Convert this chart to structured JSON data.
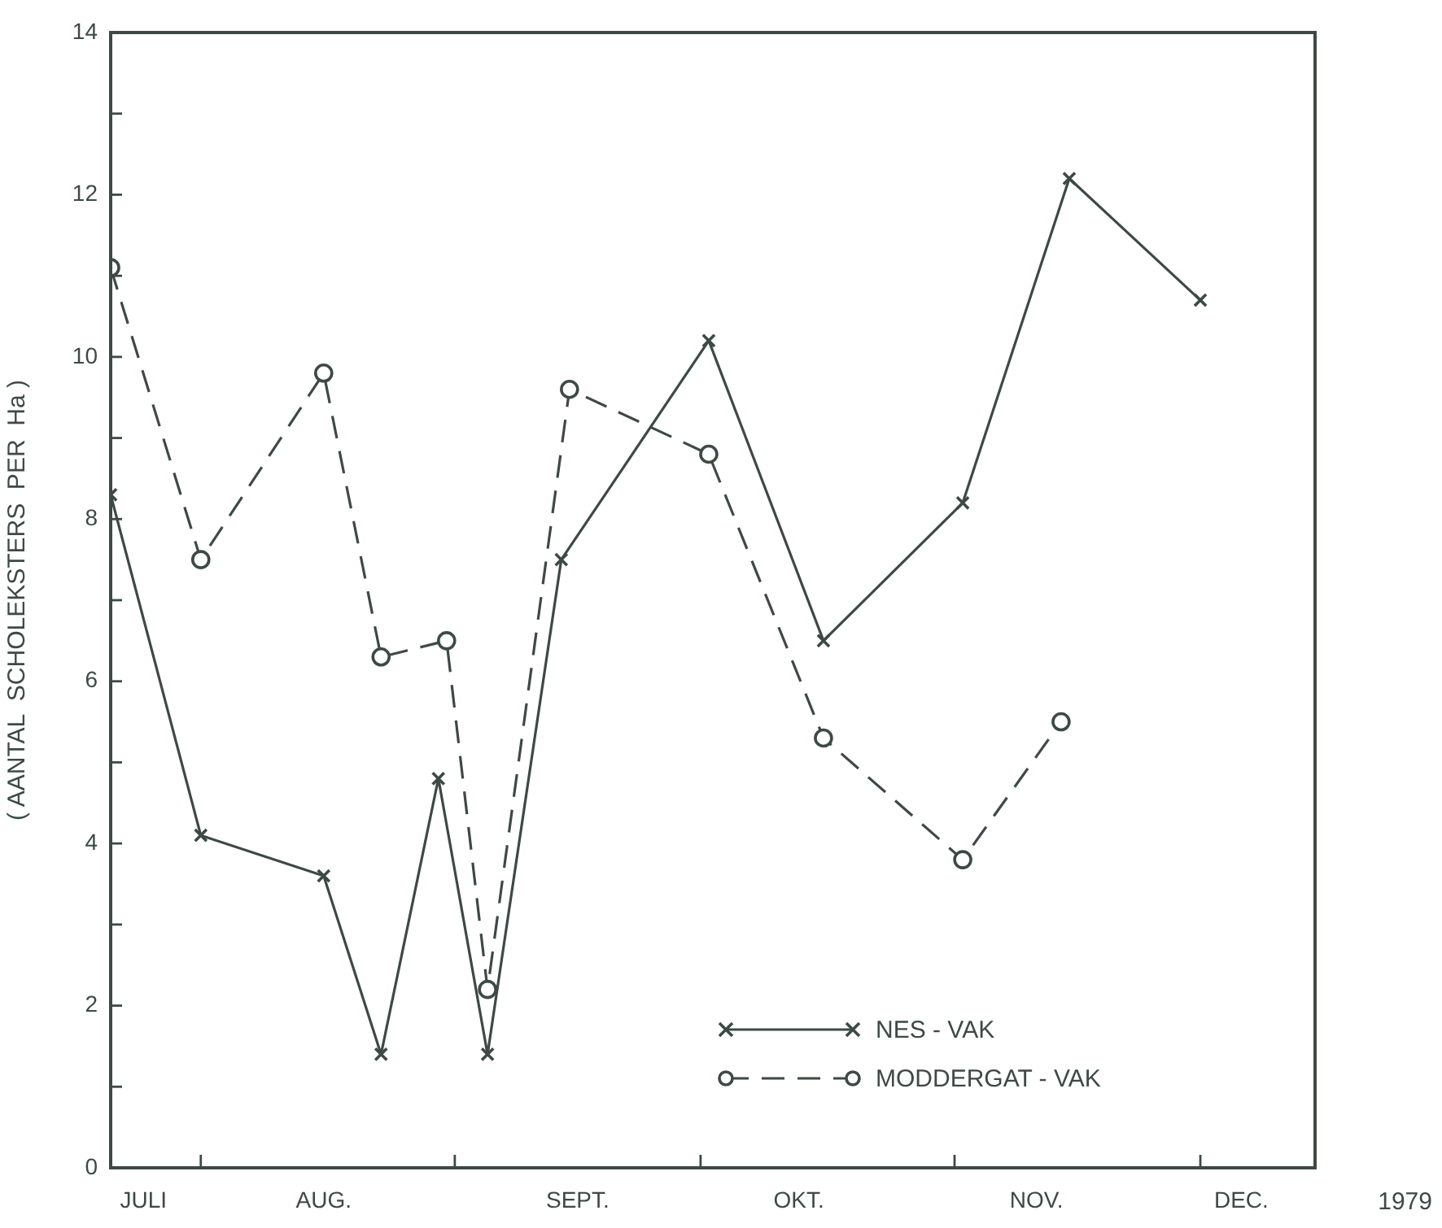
{
  "chart_data": {
    "type": "line",
    "ylabel": "( AANTAL  SCHOLEKSTERS  PER  Ha )",
    "xlim": [
      "1979-07-21",
      "1979-12-15"
    ],
    "xticks": [
      {
        "value": "1979-07-25",
        "label": "JULI"
      },
      {
        "value": "1979-08-01",
        "label": null
      },
      {
        "value": "1979-08-16",
        "label": "AUG."
      },
      {
        "value": "1979-09-01",
        "label": null
      },
      {
        "value": "1979-09-16",
        "label": "SEPT."
      },
      {
        "value": "1979-10-01",
        "label": null
      },
      {
        "value": "1979-10-13",
        "label": "OKT."
      },
      {
        "value": "1979-11-01",
        "label": null
      },
      {
        "value": "1979-11-11",
        "label": "NOV."
      },
      {
        "value": "1979-12-01",
        "label": null
      },
      {
        "value": "1979-12-06",
        "label": "DEC."
      }
    ],
    "ylim": [
      0,
      14
    ],
    "yticks": [
      0,
      {
        "value": 1,
        "label": null
      },
      2,
      {
        "value": 3,
        "label": null
      },
      4,
      {
        "value": 5,
        "label": null
      },
      6,
      {
        "value": 7,
        "label": null
      },
      8,
      {
        "value": 9,
        "label": null
      },
      10,
      {
        "value": 11,
        "label": null
      },
      12,
      {
        "value": 13,
        "label": null
      },
      14
    ],
    "annotations": [
      "1979"
    ],
    "grid": false,
    "legend": "bottom right",
    "series": [
      {
        "name": "NES - VAK",
        "color": "#3d4a44",
        "marker": "cross",
        "line_style": "solid",
        "x": [
          "1979-07-21",
          "1979-08-01",
          "1979-08-16",
          "1979-08-23",
          "1979-08-30",
          "1979-09-05",
          "1979-09-14",
          "1979-10-02",
          "1979-10-16",
          "1979-11-02",
          "1979-11-15",
          "1979-12-01"
        ],
        "values": [
          8.3,
          4.1,
          3.6,
          1.4,
          4.8,
          1.4,
          7.5,
          10.2,
          6.5,
          8.2,
          12.2,
          10.7
        ]
      },
      {
        "name": "MODDERGAT - VAK",
        "color": "#3d4a44",
        "marker": "circle",
        "line_style": "dashed",
        "x": [
          "1979-07-21",
          "1979-08-01",
          "1979-08-16",
          "1979-08-23",
          "1979-08-31",
          "1979-09-05",
          "1979-09-15",
          "1979-10-02",
          "1979-10-16",
          "1979-11-02",
          "1979-11-14"
        ],
        "values": [
          11.1,
          7.5,
          9.8,
          6.3,
          6.5,
          2.2,
          9.6,
          8.8,
          5.3,
          3.8,
          5.5
        ]
      }
    ]
  }
}
